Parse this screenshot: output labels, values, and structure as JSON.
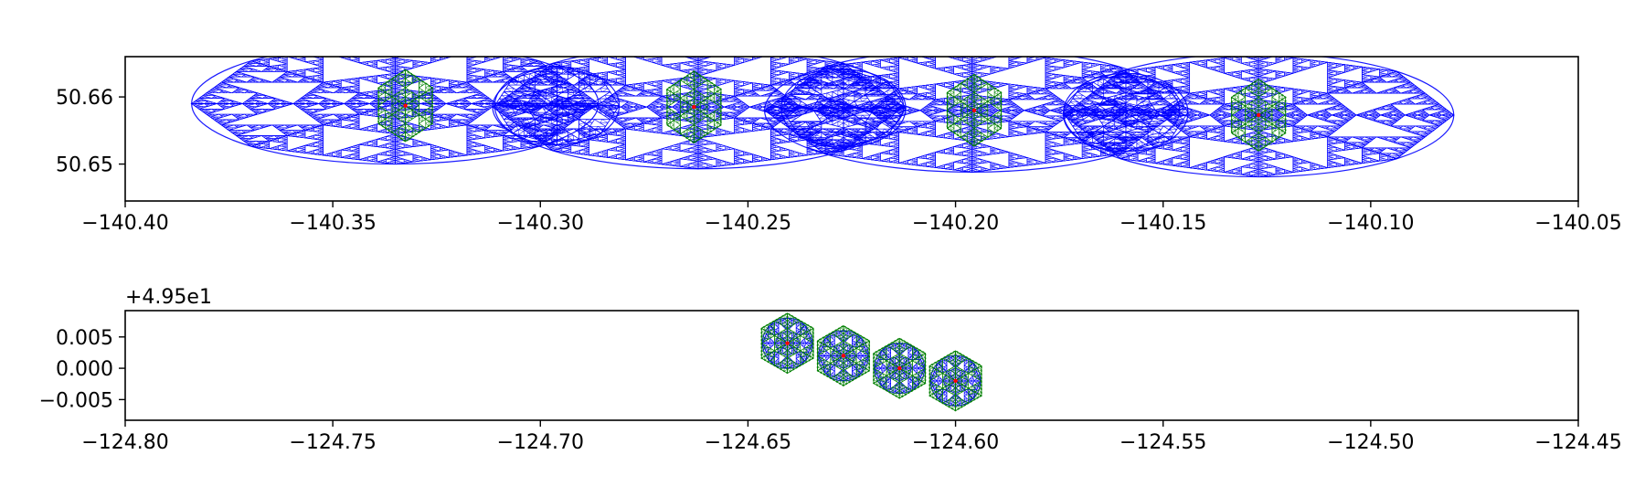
{
  "chart_data": [
    {
      "type": "scatter",
      "title": "",
      "xlabel": "",
      "ylabel": "",
      "xlim": [
        -140.4,
        -140.05
      ],
      "ylim": [
        50.6445,
        50.666
      ],
      "grid": false,
      "x_ticks": [
        -140.4,
        -140.35,
        -140.3,
        -140.25,
        -140.2,
        -140.15,
        -140.1,
        -140.05
      ],
      "x_tick_labels": [
        "−140.40",
        "−140.35",
        "−140.30",
        "−140.25",
        "−140.20",
        "−140.15",
        "−140.10",
        "−140.05"
      ],
      "y_ticks": [
        50.65,
        50.66
      ],
      "y_tick_labels": [
        "50.65",
        "50.66"
      ],
      "y_offset_label": "",
      "colors": {
        "coarse_mesh": "#0000ff",
        "fine_mesh": "#008000",
        "center": "#ff0000"
      },
      "series": [
        {
          "values": [
            {
              "x": -140.3325,
              "y": 50.6587
            },
            {
              "x": -140.263,
              "y": 50.6585
            },
            {
              "x": -140.1955,
              "y": 50.658
            },
            {
              "x": -140.127,
              "y": 50.6573
            }
          ]
        }
      ],
      "coarse_regions": [
        {
          "x": -140.335,
          "y": 50.659,
          "rx": 0.049,
          "ry": 0.009,
          "depth": 5
        },
        {
          "x": -140.296,
          "y": 50.6587,
          "rx": 0.015,
          "ry": 0.0058,
          "depth": 3
        },
        {
          "x": -140.262,
          "y": 50.6585,
          "rx": 0.0495,
          "ry": 0.0092,
          "depth": 5
        },
        {
          "x": -140.227,
          "y": 50.6583,
          "rx": 0.015,
          "ry": 0.0058,
          "depth": 3
        },
        {
          "x": -140.196,
          "y": 50.658,
          "rx": 0.05,
          "ry": 0.0092,
          "depth": 5
        },
        {
          "x": -140.159,
          "y": 50.6577,
          "rx": 0.015,
          "ry": 0.0058,
          "depth": 3
        },
        {
          "x": -140.127,
          "y": 50.6573,
          "rx": 0.047,
          "ry": 0.0092,
          "depth": 5
        }
      ],
      "fine_regions": [
        {
          "x": -140.3325,
          "y": 50.6587,
          "r": 0.0075
        },
        {
          "x": -140.263,
          "y": 50.6585,
          "r": 0.0075
        },
        {
          "x": -140.1955,
          "y": 50.658,
          "r": 0.0075
        },
        {
          "x": -140.127,
          "y": 50.6573,
          "r": 0.0075
        }
      ]
    },
    {
      "type": "scatter",
      "title": "",
      "xlabel": "",
      "ylabel": "",
      "xlim": [
        -124.8,
        -124.45
      ],
      "ylim": [
        -0.0083,
        0.0092
      ],
      "grid": false,
      "x_ticks": [
        -124.8,
        -124.75,
        -124.7,
        -124.65,
        -124.6,
        -124.55,
        -124.5,
        -124.45
      ],
      "x_tick_labels": [
        "−124.80",
        "−124.75",
        "−124.70",
        "−124.65",
        "−124.60",
        "−124.55",
        "−124.50",
        "−124.45"
      ],
      "y_ticks": [
        -0.005,
        0.0,
        0.005
      ],
      "y_tick_labels": [
        "−0.005",
        "0.000",
        "0.005"
      ],
      "y_offset_label": "+4.95e1",
      "colors": {
        "coarse_mesh": "#0000ff",
        "fine_mesh": "#008000",
        "center": "#ff0000"
      },
      "series": [
        {
          "values": [
            {
              "x": -124.6405,
              "y": 0.004
            },
            {
              "x": -124.627,
              "y": 0.002
            },
            {
              "x": -124.6135,
              "y": 0.0
            },
            {
              "x": -124.6,
              "y": -0.002
            }
          ]
        }
      ],
      "coarse_regions": [
        {
          "x": -124.6405,
          "y": 0.004,
          "rx": 0.006,
          "ry": 0.004,
          "depth": 3
        },
        {
          "x": -124.627,
          "y": 0.002,
          "rx": 0.006,
          "ry": 0.004,
          "depth": 3
        },
        {
          "x": -124.6135,
          "y": 0.0,
          "rx": 0.006,
          "ry": 0.004,
          "depth": 3
        },
        {
          "x": -124.6,
          "y": -0.002,
          "rx": 0.006,
          "ry": 0.004,
          "depth": 3
        }
      ],
      "fine_regions": [
        {
          "x": -124.6405,
          "y": 0.004,
          "r": 0.0072
        },
        {
          "x": -124.627,
          "y": 0.002,
          "r": 0.0072
        },
        {
          "x": -124.6135,
          "y": 0.0,
          "r": 0.0072
        },
        {
          "x": -124.6,
          "y": -0.002,
          "r": 0.0072
        }
      ]
    }
  ]
}
